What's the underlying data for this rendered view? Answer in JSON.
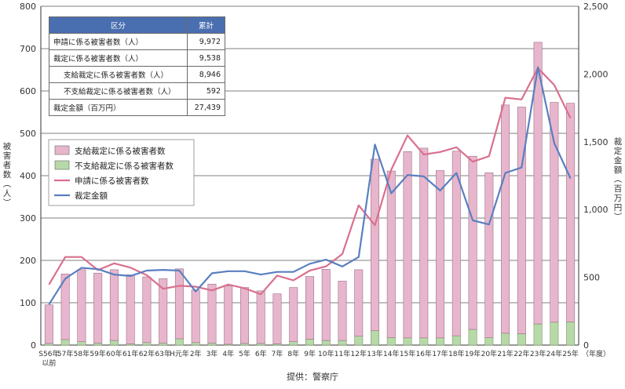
{
  "summary_table": {
    "header": [
      "区分",
      "累計"
    ],
    "rows": [
      {
        "label": "申請に係る被害者数（人）",
        "value": "9,972",
        "indent": false
      },
      {
        "label": "裁定に係る被害者数（人）",
        "value": "9,538",
        "indent": false
      },
      {
        "label": "支給裁定に係る被害者数（人）",
        "value": "8,946",
        "indent": true
      },
      {
        "label": "不支給裁定に係る被害者数（人）",
        "value": "592",
        "indent": true
      },
      {
        "label": "裁定金額（百万円）",
        "value": "27,439",
        "indent": false
      }
    ]
  },
  "source": "提供：警察庁",
  "chart_data": {
    "type": "bar",
    "stacked": true,
    "categories": [
      "S56年\n以前",
      "57年",
      "58年",
      "59年",
      "60年",
      "61年",
      "62年",
      "63年",
      "H元年",
      "2年",
      "3年",
      "4年",
      "5年",
      "6年",
      "7年",
      "8年",
      "9年",
      "10年",
      "11年",
      "12年",
      "13年",
      "14年",
      "15年",
      "16年",
      "17年",
      "18年",
      "19年",
      "20年",
      "21年",
      "22年",
      "23年",
      "24年",
      "25年"
    ],
    "x_unit_label": "（年度）",
    "ylabel": "被害者数（人）",
    "ylabel_right": "裁定金額（百万円）",
    "ylim": [
      0,
      800
    ],
    "yticks": [
      0,
      100,
      200,
      300,
      400,
      500,
      600,
      700,
      800
    ],
    "ylim_right": [
      0,
      2500
    ],
    "yticks_right": [
      0,
      500,
      1000,
      1500,
      2000,
      2500
    ],
    "yticks_right_labels": [
      "0",
      "500",
      "1,000",
      "1,500",
      "2,000",
      "2,500"
    ],
    "grid": true,
    "legend_position": "upper-left",
    "series": [
      {
        "name": "支給裁定に係る被害者数",
        "type": "bar",
        "axis": "left",
        "color": "#e8b6cc",
        "values": [
          91,
          155,
          170,
          165,
          167,
          163,
          155,
          152,
          165,
          124,
          139,
          138,
          132,
          124,
          118,
          128,
          148,
          168,
          140,
          157,
          405,
          393,
          440,
          448,
          395,
          436,
          409,
          389,
          539,
          535,
          665,
          519,
          516
        ]
      },
      {
        "name": "不支給裁定に係る被害者数",
        "type": "bar",
        "axis": "left",
        "color": "#b7d9a8",
        "values": [
          4,
          13,
          8,
          5,
          11,
          3,
          6,
          5,
          15,
          6,
          5,
          2,
          4,
          4,
          3,
          8,
          14,
          11,
          11,
          21,
          34,
          18,
          17,
          17,
          17,
          22,
          37,
          18,
          28,
          27,
          50,
          54,
          55
        ]
      },
      {
        "name": "申請に係る被害者数",
        "type": "line",
        "axis": "left",
        "color": "#d9708e",
        "values": [
          143,
          208,
          208,
          177,
          193,
          183,
          165,
          133,
          140,
          138,
          129,
          143,
          134,
          120,
          164,
          153,
          176,
          186,
          215,
          330,
          283,
          414,
          495,
          450,
          456,
          467,
          433,
          446,
          584,
          580,
          654,
          614,
          536
        ]
      },
      {
        "name": "裁定金額",
        "type": "line",
        "axis": "right",
        "color": "#5a7fc0",
        "values": [
          300,
          490,
          570,
          560,
          520,
          510,
          550,
          555,
          550,
          395,
          530,
          545,
          545,
          520,
          540,
          540,
          600,
          630,
          580,
          650,
          1480,
          1120,
          1255,
          1245,
          1140,
          1270,
          920,
          890,
          1270,
          1310,
          2050,
          1490,
          1230
        ]
      }
    ]
  }
}
